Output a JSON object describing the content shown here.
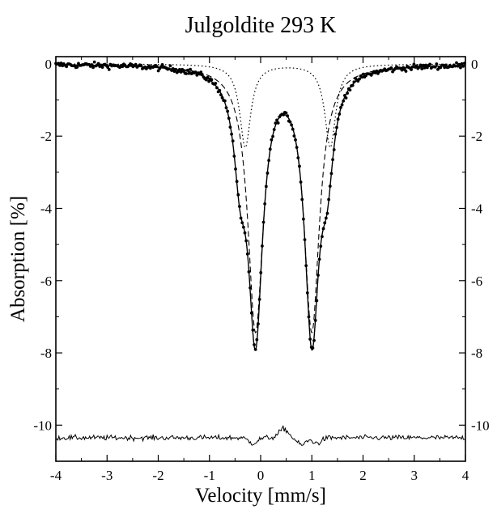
{
  "chart_data": {
    "type": "scatter",
    "title": "Julgoldite 293 K",
    "xlabel": "Velocity [mm/s]",
    "ylabel": "Absorption [%]",
    "xlim": [
      -4,
      4
    ],
    "ylim": [
      -11,
      0.2
    ],
    "x_ticks": [
      -4,
      -3,
      -2,
      -1,
      0,
      1,
      2,
      3,
      4
    ],
    "x_tick_labels": [
      "-4",
      "-3",
      "-2",
      "-1",
      "0",
      "1",
      "2",
      "3",
      "4"
    ],
    "y_ticks": [
      0,
      -2,
      -4,
      -6,
      -8,
      -10
    ],
    "y_tick_labels": [
      "0",
      "-2",
      "-4",
      "-6",
      "-8",
      "-10"
    ],
    "right_y_tick_labels": [
      "0",
      "-2",
      "-4",
      "-6",
      "-8",
      "-10"
    ],
    "grid": false,
    "legend": "none",
    "colors": {
      "ink": "#000000",
      "background": "#ffffff"
    },
    "series": [
      {
        "role": "measured-data",
        "style": "dots",
        "doublets": [
          {
            "center": 0.45,
            "split": 1.1,
            "depth": 7.28,
            "hwhm": 0.17
          },
          {
            "center": 0.45,
            "split": 1.7,
            "depth": 2.22,
            "hwhm": 0.15
          }
        ],
        "noise": 0.08,
        "step": 0.026
      },
      {
        "role": "total-fit",
        "style": "solid",
        "doublets": [
          {
            "center": 0.45,
            "split": 1.1,
            "depth": 7.28,
            "hwhm": 0.17
          },
          {
            "center": 0.45,
            "split": 1.7,
            "depth": 2.22,
            "hwhm": 0.15
          }
        ]
      },
      {
        "role": "subspectrum-1",
        "style": "dashed",
        "doublets": [
          {
            "center": 0.45,
            "split": 1.1,
            "depth": 7.25,
            "hwhm": 0.18
          }
        ]
      },
      {
        "role": "subspectrum-2",
        "style": "dotted",
        "doublets": [
          {
            "center": 0.53,
            "split": 1.66,
            "depth": 2.3,
            "hwhm": 0.13
          }
        ]
      },
      {
        "role": "residual",
        "style": "solid-thin",
        "offset": -10.35,
        "noise": 0.07,
        "features": [
          {
            "x": -0.15,
            "dy": -0.15
          },
          {
            "x": 0.45,
            "dy": 0.25
          },
          {
            "x": 0.8,
            "dy": -0.2
          },
          {
            "x": 1.1,
            "dy": -0.15
          }
        ]
      }
    ]
  }
}
